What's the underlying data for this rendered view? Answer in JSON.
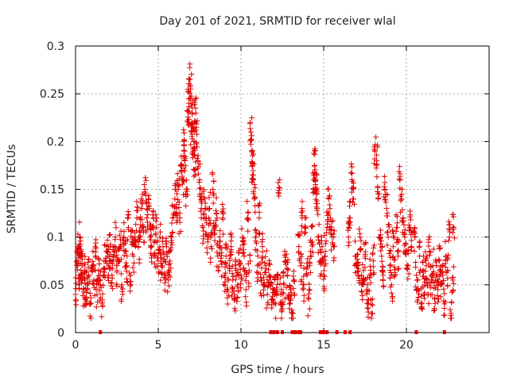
{
  "chart_data": {
    "type": "scatter",
    "title": "Day 201 of 2021, SRMTID for receiver wlal",
    "xlabel": "GPS time / hours",
    "ylabel": "SRMTID / TECUs",
    "xlim": [
      0,
      25
    ],
    "ylim": [
      0,
      0.3
    ],
    "x_ticks": [
      0,
      5,
      10,
      15,
      20
    ],
    "x_tick_labels": [
      "0",
      "5",
      "10",
      "15",
      "20"
    ],
    "y_ticks": [
      0,
      0.05,
      0.1,
      0.15,
      0.2,
      0.25,
      0.3
    ],
    "y_tick_labels": [
      "0",
      "0.05",
      "0.1",
      "0.15",
      "0.2",
      "0.25",
      "0.3"
    ],
    "grid": true,
    "marker": "+",
    "color": "#e00000",
    "series": [
      {
        "name": "SRMTID",
        "points": [
          [
            0.0,
            0.04
          ],
          [
            0.1,
            0.075
          ],
          [
            0.15,
            0.09
          ],
          [
            0.2,
            0.06
          ],
          [
            0.25,
            0.1
          ],
          [
            0.3,
            0.08
          ],
          [
            0.35,
            0.055
          ],
          [
            0.4,
            0.07
          ],
          [
            0.5,
            0.045
          ],
          [
            0.55,
            0.065
          ],
          [
            0.6,
            0.035
          ],
          [
            0.7,
            0.05
          ],
          [
            0.8,
            0.06
          ],
          [
            0.9,
            0.03
          ],
          [
            1.0,
            0.07
          ],
          [
            1.1,
            0.055
          ],
          [
            1.2,
            0.08
          ],
          [
            1.3,
            0.04
          ],
          [
            1.4,
            0.065
          ],
          [
            1.5,
            0.05
          ],
          [
            1.6,
            0.03
          ],
          [
            1.7,
            0.06
          ],
          [
            1.8,
            0.075
          ],
          [
            1.9,
            0.085
          ],
          [
            2.0,
            0.07
          ],
          [
            2.1,
            0.09
          ],
          [
            2.2,
            0.06
          ],
          [
            2.3,
            0.08
          ],
          [
            2.4,
            0.1
          ],
          [
            2.5,
            0.065
          ],
          [
            2.6,
            0.075
          ],
          [
            2.7,
            0.09
          ],
          [
            2.8,
            0.05
          ],
          [
            2.9,
            0.1
          ],
          [
            3.0,
            0.085
          ],
          [
            3.1,
            0.07
          ],
          [
            3.2,
            0.11
          ],
          [
            3.3,
            0.06
          ],
          [
            3.4,
            0.095
          ],
          [
            3.5,
            0.08
          ],
          [
            3.6,
            0.1
          ],
          [
            3.7,
            0.12
          ],
          [
            3.8,
            0.09
          ],
          [
            3.9,
            0.105
          ],
          [
            4.0,
            0.13
          ],
          [
            4.1,
            0.11
          ],
          [
            4.2,
            0.15
          ],
          [
            4.3,
            0.12
          ],
          [
            4.4,
            0.14
          ],
          [
            4.5,
            0.1
          ],
          [
            4.6,
            0.09
          ],
          [
            4.7,
            0.12
          ],
          [
            4.8,
            0.08
          ],
          [
            4.9,
            0.11
          ],
          [
            5.0,
            0.075
          ],
          [
            5.1,
            0.1
          ],
          [
            5.2,
            0.07
          ],
          [
            5.3,
            0.085
          ],
          [
            5.4,
            0.06
          ],
          [
            5.5,
            0.09
          ],
          [
            5.6,
            0.055
          ],
          [
            5.7,
            0.075
          ],
          [
            5.8,
            0.1
          ],
          [
            5.9,
            0.12
          ],
          [
            6.0,
            0.14
          ],
          [
            6.1,
            0.13
          ],
          [
            6.2,
            0.15
          ],
          [
            6.3,
            0.12
          ],
          [
            6.4,
            0.17
          ],
          [
            6.5,
            0.16
          ],
          [
            6.55,
            0.2
          ],
          [
            6.6,
            0.18
          ],
          [
            6.7,
            0.15
          ],
          [
            6.8,
            0.22
          ],
          [
            6.85,
            0.24
          ],
          [
            6.9,
            0.265
          ],
          [
            6.95,
            0.255
          ],
          [
            7.0,
            0.21
          ],
          [
            7.05,
            0.23
          ],
          [
            7.1,
            0.19
          ],
          [
            7.15,
            0.2
          ],
          [
            7.2,
            0.17
          ],
          [
            7.25,
            0.235
          ],
          [
            7.3,
            0.215
          ],
          [
            7.4,
            0.18
          ],
          [
            7.5,
            0.16
          ],
          [
            7.6,
            0.13
          ],
          [
            7.7,
            0.11
          ],
          [
            7.8,
            0.14
          ],
          [
            7.9,
            0.12
          ],
          [
            8.0,
            0.1
          ],
          [
            8.1,
            0.13
          ],
          [
            8.2,
            0.09
          ],
          [
            8.3,
            0.15
          ],
          [
            8.4,
            0.11
          ],
          [
            8.5,
            0.125
          ],
          [
            8.6,
            0.08
          ],
          [
            8.7,
            0.1
          ],
          [
            8.8,
            0.075
          ],
          [
            8.9,
            0.12
          ],
          [
            9.0,
            0.06
          ],
          [
            9.1,
            0.08
          ],
          [
            9.2,
            0.045
          ],
          [
            9.3,
            0.07
          ],
          [
            9.4,
            0.09
          ],
          [
            9.5,
            0.055
          ],
          [
            9.6,
            0.04
          ],
          [
            9.7,
            0.065
          ],
          [
            9.8,
            0.05
          ],
          [
            9.9,
            0.075
          ],
          [
            10.0,
            0.06
          ],
          [
            10.1,
            0.1
          ],
          [
            10.2,
            0.08
          ],
          [
            10.3,
            0.045
          ],
          [
            10.4,
            0.12
          ],
          [
            10.5,
            0.065
          ],
          [
            10.6,
            0.21
          ],
          [
            10.65,
            0.19
          ],
          [
            10.7,
            0.175
          ],
          [
            10.75,
            0.165
          ],
          [
            10.8,
            0.14
          ],
          [
            10.9,
            0.1
          ],
          [
            11.0,
            0.07
          ],
          [
            11.1,
            0.12
          ],
          [
            11.2,
            0.055
          ],
          [
            11.3,
            0.09
          ],
          [
            11.4,
            0.05
          ],
          [
            11.5,
            0.07
          ],
          [
            11.6,
            0.04
          ],
          [
            11.7,
            0.06
          ],
          [
            11.8,
            0.05
          ],
          [
            11.9,
            0.035
          ],
          [
            12.0,
            0.045
          ],
          [
            12.1,
            0.03
          ],
          [
            12.2,
            0.06
          ],
          [
            12.3,
            0.152
          ],
          [
            12.4,
            0.04
          ],
          [
            12.5,
            0.025
          ],
          [
            12.6,
            0.05
          ],
          [
            12.7,
            0.075
          ],
          [
            12.8,
            0.06
          ],
          [
            12.9,
            0.035
          ],
          [
            13.0,
            0.045
          ],
          [
            13.1,
            0.02
          ],
          [
            13.2,
            0.055
          ],
          [
            13.5,
            0.09
          ],
          [
            13.6,
            0.07
          ],
          [
            13.7,
            0.12
          ],
          [
            13.8,
            0.05
          ],
          [
            13.9,
            0.105
          ],
          [
            14.0,
            0.06
          ],
          [
            14.1,
            0.035
          ],
          [
            14.2,
            0.08
          ],
          [
            14.3,
            0.095
          ],
          [
            14.4,
            0.16
          ],
          [
            14.45,
            0.175
          ],
          [
            14.5,
            0.155
          ],
          [
            14.55,
            0.15
          ],
          [
            14.6,
            0.13
          ],
          [
            14.7,
            0.1
          ],
          [
            14.8,
            0.075
          ],
          [
            14.9,
            0.09
          ],
          [
            15.0,
            0.06
          ],
          [
            15.1,
            0.085
          ],
          [
            15.2,
            0.11
          ],
          [
            15.3,
            0.14
          ],
          [
            15.4,
            0.12
          ],
          [
            15.5,
            0.1
          ],
          [
            15.6,
            0.09
          ],
          [
            16.5,
            0.1
          ],
          [
            16.6,
            0.12
          ],
          [
            16.7,
            0.16
          ],
          [
            16.8,
            0.14
          ],
          [
            16.9,
            0.08
          ],
          [
            17.0,
            0.07
          ],
          [
            17.1,
            0.06
          ],
          [
            17.2,
            0.1
          ],
          [
            17.3,
            0.05
          ],
          [
            17.4,
            0.065
          ],
          [
            17.5,
            0.08
          ],
          [
            17.6,
            0.045
          ],
          [
            17.7,
            0.03
          ],
          [
            17.8,
            0.06
          ],
          [
            17.9,
            0.02
          ],
          [
            18.0,
            0.075
          ],
          [
            18.1,
            0.19
          ],
          [
            18.2,
            0.18
          ],
          [
            18.3,
            0.14
          ],
          [
            18.4,
            0.1
          ],
          [
            18.5,
            0.08
          ],
          [
            18.6,
            0.06
          ],
          [
            18.7,
            0.15
          ],
          [
            18.8,
            0.13
          ],
          [
            18.9,
            0.1
          ],
          [
            19.0,
            0.07
          ],
          [
            19.1,
            0.05
          ],
          [
            19.2,
            0.09
          ],
          [
            19.3,
            0.06
          ],
          [
            19.4,
            0.11
          ],
          [
            19.5,
            0.08
          ],
          [
            19.6,
            0.16
          ],
          [
            19.7,
            0.14
          ],
          [
            19.8,
            0.12
          ],
          [
            19.9,
            0.1
          ],
          [
            20.0,
            0.085
          ],
          [
            20.1,
            0.07
          ],
          [
            20.2,
            0.11
          ],
          [
            20.3,
            0.09
          ],
          [
            20.5,
            0.1
          ],
          [
            20.6,
            0.06
          ],
          [
            20.7,
            0.045
          ],
          [
            20.8,
            0.08
          ],
          [
            20.9,
            0.03
          ],
          [
            21.0,
            0.065
          ],
          [
            21.1,
            0.05
          ],
          [
            21.2,
            0.07
          ],
          [
            21.3,
            0.04
          ],
          [
            21.4,
            0.085
          ],
          [
            21.5,
            0.055
          ],
          [
            21.6,
            0.07
          ],
          [
            21.7,
            0.035
          ],
          [
            21.8,
            0.06
          ],
          [
            21.9,
            0.045
          ],
          [
            22.0,
            0.075
          ],
          [
            22.1,
            0.05
          ],
          [
            22.2,
            0.06
          ],
          [
            22.3,
            0.03
          ],
          [
            22.4,
            0.08
          ],
          [
            22.5,
            0.065
          ],
          [
            22.6,
            0.1
          ],
          [
            22.7,
            0.02
          ],
          [
            22.8,
            0.055
          ],
          [
            22.85,
            0.11
          ]
        ]
      }
    ],
    "zero_points_x": [
      1.5,
      11.8,
      12.0,
      12.2,
      12.5,
      13.1,
      13.2,
      13.3,
      13.5,
      13.6,
      14.8,
      14.9,
      15.0,
      15.2,
      15.8,
      16.3,
      16.6,
      20.6,
      22.3
    ]
  }
}
